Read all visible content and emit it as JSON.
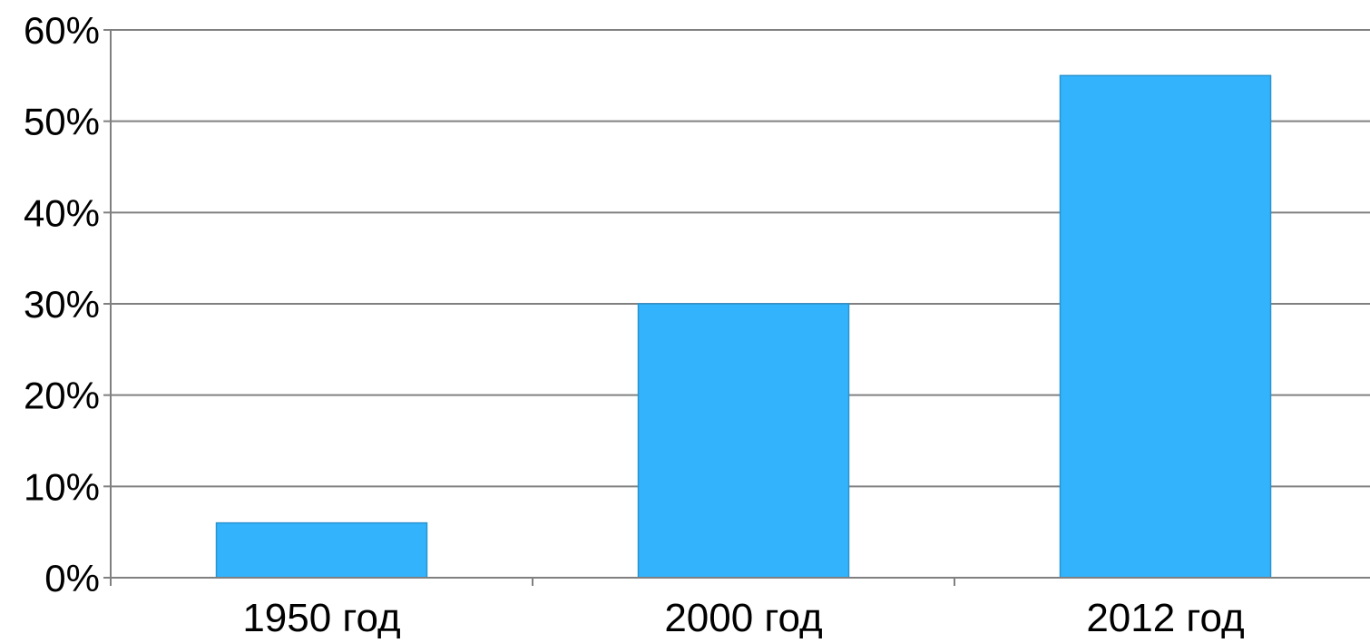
{
  "chart_data": {
    "type": "bar",
    "categories": [
      "1950 год",
      "2000 год",
      "2012 год"
    ],
    "values": [
      6,
      30,
      55
    ],
    "ylim": [
      0,
      60
    ],
    "yticks": [
      0,
      10,
      20,
      30,
      40,
      50,
      60
    ],
    "ytick_labels": [
      "0%",
      "10%",
      "20%",
      "30%",
      "40%",
      "50%",
      "60%"
    ],
    "grid": true,
    "legend": "none",
    "title": "",
    "xlabel": "",
    "ylabel": "",
    "colors": {
      "bar": "#33b3fc",
      "bar_edge": "#2a93cf",
      "grid": "#808080",
      "axis": "#808080",
      "text": "#000000"
    }
  }
}
